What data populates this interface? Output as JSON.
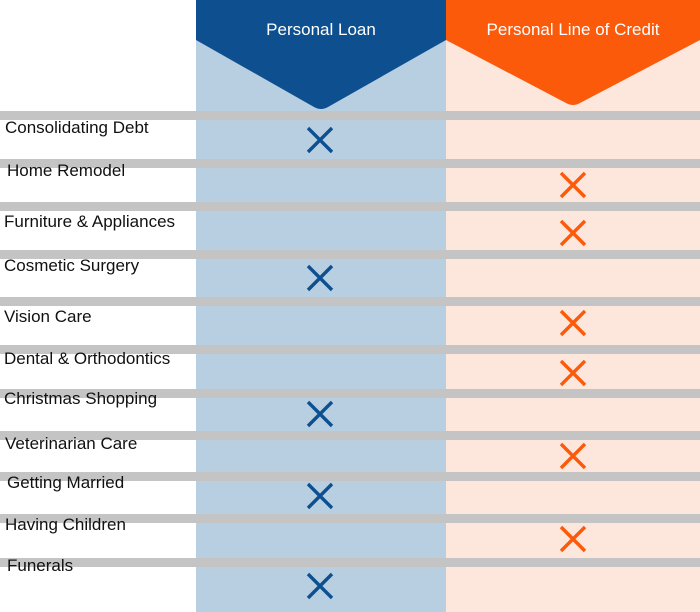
{
  "colors": {
    "loan_dark": "#0d4f8f",
    "loan_light": "#b8cfe1",
    "loc_dark": "#fb5a0b",
    "loc_light": "#fde6dc",
    "divider": "#c4c4c4",
    "text": "#111111"
  },
  "columns": {
    "loan": {
      "label": "Personal Loan"
    },
    "line_of_credit": {
      "label": "Personal Line of Credit"
    }
  },
  "mark_icon": "x-mark-icon",
  "rows": [
    {
      "label": "Consolidating Debt",
      "loan": true,
      "line_of_credit": false
    },
    {
      "label": "Home Remodel",
      "loan": false,
      "line_of_credit": true
    },
    {
      "label": "Furniture & Appliances",
      "loan": false,
      "line_of_credit": true
    },
    {
      "label": "Cosmetic Surgery",
      "loan": true,
      "line_of_credit": false
    },
    {
      "label": "Vision Care",
      "loan": false,
      "line_of_credit": true
    },
    {
      "label": "Dental & Orthodontics",
      "loan": false,
      "line_of_credit": true
    },
    {
      "label": "Christmas Shopping",
      "loan": true,
      "line_of_credit": false
    },
    {
      "label": "Veterinarian Care",
      "loan": false,
      "line_of_credit": true
    },
    {
      "label": "Getting Married",
      "loan": true,
      "line_of_credit": false
    },
    {
      "label": "Having Children",
      "loan": false,
      "line_of_credit": true
    },
    {
      "label": "Funerals",
      "loan": true,
      "line_of_credit": false
    }
  ]
}
